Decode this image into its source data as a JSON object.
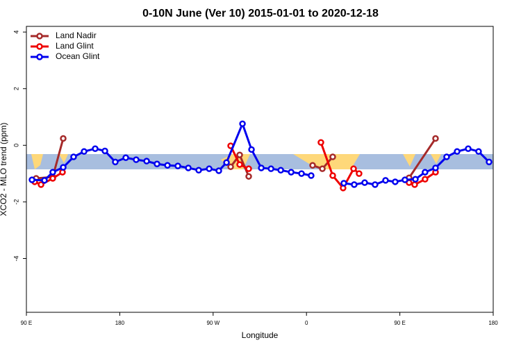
{
  "chart_data": {
    "type": "line",
    "title": "0-10N June (Ver 10)   2015-01-01 to 2020-12-18",
    "xlabel": "Longitude",
    "ylabel": "XCO2 - MLO trend (ppm)",
    "xlim": [
      90,
      540
    ],
    "ylim": [
      -5.9,
      4.2
    ],
    "xticks": [
      {
        "value": 90,
        "label": "90 E"
      },
      {
        "value": 180,
        "label": "180"
      },
      {
        "value": 270,
        "label": "90 W"
      },
      {
        "value": 360,
        "label": "0"
      },
      {
        "value": 450,
        "label": "90 E"
      },
      {
        "value": 540,
        "label": "180"
      }
    ],
    "yticks": [
      -4,
      -2,
      0,
      2,
      4
    ],
    "legend": "top-left",
    "series": [
      {
        "name": "Land Nadir",
        "color": "#a52a2a",
        "x": [
          99.4,
          115.4,
          125.5,
          null,
          286.9,
          295.6,
          304.3,
          null,
          365.9,
          375.3,
          385.3,
          null,
          458.9,
          484.4
        ],
        "values": [
          -1.17,
          -1.12,
          0.24,
          null,
          -0.76,
          -0.34,
          -1.1,
          null,
          -0.71,
          -0.83,
          -0.41,
          null,
          -1.15,
          0.24
        ]
      },
      {
        "name": "Land Glint",
        "color": "#ee0000",
        "x": [
          98,
          104.1,
          115.4,
          124.8,
          null,
          286.9,
          295.6,
          304.3,
          null,
          373.9,
          385.3,
          395.3,
          405.4,
          410.7,
          null,
          458.9,
          464.3,
          474.3,
          484.4
        ],
        "values": [
          -1.29,
          -1.39,
          -1.17,
          -0.95,
          null,
          -0.02,
          -0.68,
          -0.83,
          null,
          0.1,
          -1.07,
          -1.51,
          -0.83,
          -1.0,
          null,
          -1.32,
          -1.39,
          -1.2,
          -0.95
        ]
      },
      {
        "name": "Ocean Glint",
        "color": "#0000ee",
        "x": [
          95.4,
          107.4,
          115.4,
          125.5,
          135.5,
          145.6,
          156.3,
          165.7,
          175.7,
          185.8,
          195.8,
          205.9,
          215.9,
          226,
          236,
          246.1,
          256.1,
          266.2,
          275.5,
          282.9,
          298.3,
          307,
          316.4,
          325.8,
          335.2,
          345.2,
          355.2,
          364.5,
          null,
          396,
          406,
          416.1,
          426.1,
          436.2,
          445.5,
          454.9,
          465,
          474.3,
          484.4,
          495.1,
          505.2,
          515.9,
          525.9,
          536
        ],
        "values": [
          -1.22,
          -1.24,
          -0.95,
          -0.78,
          -0.41,
          -0.22,
          -0.12,
          -0.2,
          -0.59,
          -0.44,
          -0.51,
          -0.56,
          -0.66,
          -0.71,
          -0.73,
          -0.8,
          -0.88,
          -0.83,
          -0.9,
          -0.61,
          0.76,
          -0.15,
          -0.8,
          -0.83,
          -0.88,
          -0.95,
          -1.0,
          -1.07,
          null,
          -1.34,
          -1.39,
          -1.32,
          -1.39,
          -1.24,
          -1.29,
          -1.22,
          -1.2,
          -0.95,
          -0.8,
          -0.41,
          -0.22,
          -0.12,
          -0.22,
          -0.59
        ]
      }
    ]
  }
}
